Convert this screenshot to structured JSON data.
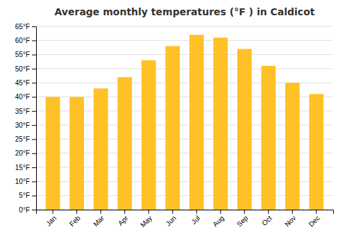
{
  "chart_data": {
    "type": "bar",
    "title": "Average monthly temperatures (°F ) in Caldicot",
    "categories": [
      "Jan",
      "Feb",
      "Mar",
      "Apr",
      "May",
      "Jun",
      "Jul",
      "Aug",
      "Sep",
      "Oct",
      "Nov",
      "Dec"
    ],
    "values": [
      40,
      40,
      43,
      47,
      53,
      58,
      62,
      61,
      57,
      51,
      45,
      41
    ],
    "color": "#FFC125",
    "ylim": [
      0,
      65
    ],
    "yticks": [
      {
        "value": 0,
        "label": "0°F"
      },
      {
        "value": 5,
        "label": "5°F"
      },
      {
        "value": 10,
        "label": "10°F"
      },
      {
        "value": 15,
        "label": "15°F"
      },
      {
        "value": 20,
        "label": "20°F"
      },
      {
        "value": 25,
        "label": "25°F"
      },
      {
        "value": 30,
        "label": "30°F"
      },
      {
        "value": 35,
        "label": "35°F"
      },
      {
        "value": 40,
        "label": "40°F"
      },
      {
        "value": 45,
        "label": "45°F"
      },
      {
        "value": 50,
        "label": "50°F"
      },
      {
        "value": 55,
        "label": "55°F"
      },
      {
        "value": 60,
        "label": "60°F"
      },
      {
        "value": 65,
        "label": "65°F"
      }
    ],
    "grid": true
  }
}
